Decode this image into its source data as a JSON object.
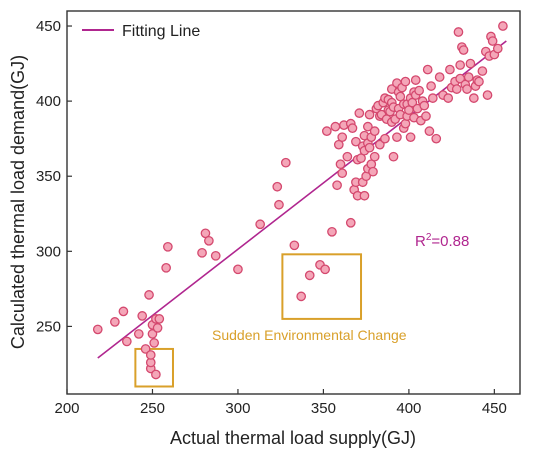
{
  "chart_data": {
    "type": "scatter",
    "xlabel": "Actual thermal load supply(GJ)",
    "ylabel": "Calculated thermal load demand(GJ)",
    "xlim": [
      200,
      465
    ],
    "ylim": [
      205,
      460
    ],
    "x_ticks": [
      "200",
      "250",
      "300",
      "350",
      "400",
      "450"
    ],
    "y_ticks": [
      "250",
      "300",
      "350",
      "400",
      "450"
    ],
    "legend": {
      "label": "Fitting Line",
      "placement": "top-left"
    },
    "fit_line": {
      "name": "Fitting Line",
      "x": [
        218,
        457
      ],
      "y": [
        229,
        440
      ],
      "color": "#b0268f"
    },
    "r_squared": {
      "base": "R",
      "sup": "2",
      "value": "=0.88"
    },
    "annotation": "Sudden Environmental Change",
    "highlight_boxes": [
      {
        "x": [
          240,
          262
        ],
        "y": [
          210,
          235
        ]
      },
      {
        "x": [
          326,
          372
        ],
        "y": [
          255,
          298
        ]
      }
    ],
    "marker_fill": "#f4a6b8",
    "marker_stroke": "#d4486e",
    "annotation_color": "#d9a02a",
    "points": [
      [
        218,
        248
      ],
      [
        228,
        253
      ],
      [
        233,
        260
      ],
      [
        235,
        240
      ],
      [
        242,
        245
      ],
      [
        244,
        257
      ],
      [
        246,
        235
      ],
      [
        248,
        271
      ],
      [
        249,
        222
      ],
      [
        249,
        226
      ],
      [
        249,
        231
      ],
      [
        250,
        245
      ],
      [
        250,
        251
      ],
      [
        251,
        239
      ],
      [
        252,
        218
      ],
      [
        252,
        255
      ],
      [
        253,
        249
      ],
      [
        254,
        255
      ],
      [
        258,
        289
      ],
      [
        259,
        303
      ],
      [
        279,
        299
      ],
      [
        281,
        312
      ],
      [
        283,
        307
      ],
      [
        287,
        297
      ],
      [
        300,
        288
      ],
      [
        313,
        318
      ],
      [
        323,
        343
      ],
      [
        324,
        331
      ],
      [
        328,
        359
      ],
      [
        333,
        304
      ],
      [
        337,
        270
      ],
      [
        342,
        284
      ],
      [
        348,
        291
      ],
      [
        351,
        288
      ],
      [
        352,
        380
      ],
      [
        355,
        313
      ],
      [
        357,
        383
      ],
      [
        358,
        344
      ],
      [
        359,
        371
      ],
      [
        360,
        358
      ],
      [
        361,
        352
      ],
      [
        361,
        376
      ],
      [
        362,
        384
      ],
      [
        364,
        363
      ],
      [
        366,
        319
      ],
      [
        366,
        385
      ],
      [
        367,
        382
      ],
      [
        368,
        341
      ],
      [
        369,
        346
      ],
      [
        369,
        373
      ],
      [
        370,
        361
      ],
      [
        370,
        337
      ],
      [
        371,
        392
      ],
      [
        372,
        362
      ],
      [
        373,
        346
      ],
      [
        373,
        370
      ],
      [
        374,
        367
      ],
      [
        374,
        337
      ],
      [
        374,
        377
      ],
      [
        375,
        350
      ],
      [
        376,
        355
      ],
      [
        376,
        372
      ],
      [
        376,
        383
      ],
      [
        377,
        369
      ],
      [
        377,
        391
      ],
      [
        378,
        358
      ],
      [
        378,
        376
      ],
      [
        379,
        353
      ],
      [
        380,
        380
      ],
      [
        380,
        363
      ],
      [
        381,
        395
      ],
      [
        382,
        397
      ],
      [
        383,
        390
      ],
      [
        383,
        371
      ],
      [
        384,
        391
      ],
      [
        385,
        399
      ],
      [
        386,
        375
      ],
      [
        386,
        402
      ],
      [
        387,
        388
      ],
      [
        388,
        394
      ],
      [
        388,
        401
      ],
      [
        389,
        393
      ],
      [
        390,
        399
      ],
      [
        390,
        386
      ],
      [
        390,
        408
      ],
      [
        391,
        396
      ],
      [
        391,
        363
      ],
      [
        392,
        388
      ],
      [
        393,
        412
      ],
      [
        393,
        376
      ],
      [
        394,
        406
      ],
      [
        394,
        395
      ],
      [
        395,
        403
      ],
      [
        395,
        391
      ],
      [
        396,
        409
      ],
      [
        397,
        398
      ],
      [
        397,
        382
      ],
      [
        398,
        413
      ],
      [
        398,
        385
      ],
      [
        399,
        398
      ],
      [
        399,
        390
      ],
      [
        400,
        394
      ],
      [
        401,
        402
      ],
      [
        401,
        376
      ],
      [
        402,
        399
      ],
      [
        403,
        406
      ],
      [
        403,
        389
      ],
      [
        404,
        404
      ],
      [
        404,
        414
      ],
      [
        405,
        395
      ],
      [
        406,
        407
      ],
      [
        407,
        387
      ],
      [
        408,
        400
      ],
      [
        409,
        397
      ],
      [
        410,
        390
      ],
      [
        411,
        421
      ],
      [
        412,
        380
      ],
      [
        413,
        410
      ],
      [
        414,
        402
      ],
      [
        416,
        375
      ],
      [
        418,
        416
      ],
      [
        420,
        404
      ],
      [
        423,
        402
      ],
      [
        424,
        421
      ],
      [
        425,
        409
      ],
      [
        427,
        413
      ],
      [
        428,
        408
      ],
      [
        429,
        446
      ],
      [
        430,
        424
      ],
      [
        430,
        415
      ],
      [
        431,
        436
      ],
      [
        432,
        434
      ],
      [
        433,
        411
      ],
      [
        434,
        408
      ],
      [
        435,
        416
      ],
      [
        436,
        425
      ],
      [
        438,
        402
      ],
      [
        439,
        410
      ],
      [
        440,
        414
      ],
      [
        441,
        413
      ],
      [
        443,
        420
      ],
      [
        445,
        433
      ],
      [
        446,
        404
      ],
      [
        447,
        430
      ],
      [
        448,
        443
      ],
      [
        449,
        440
      ],
      [
        450,
        431
      ],
      [
        452,
        435
      ],
      [
        455,
        450
      ]
    ]
  }
}
